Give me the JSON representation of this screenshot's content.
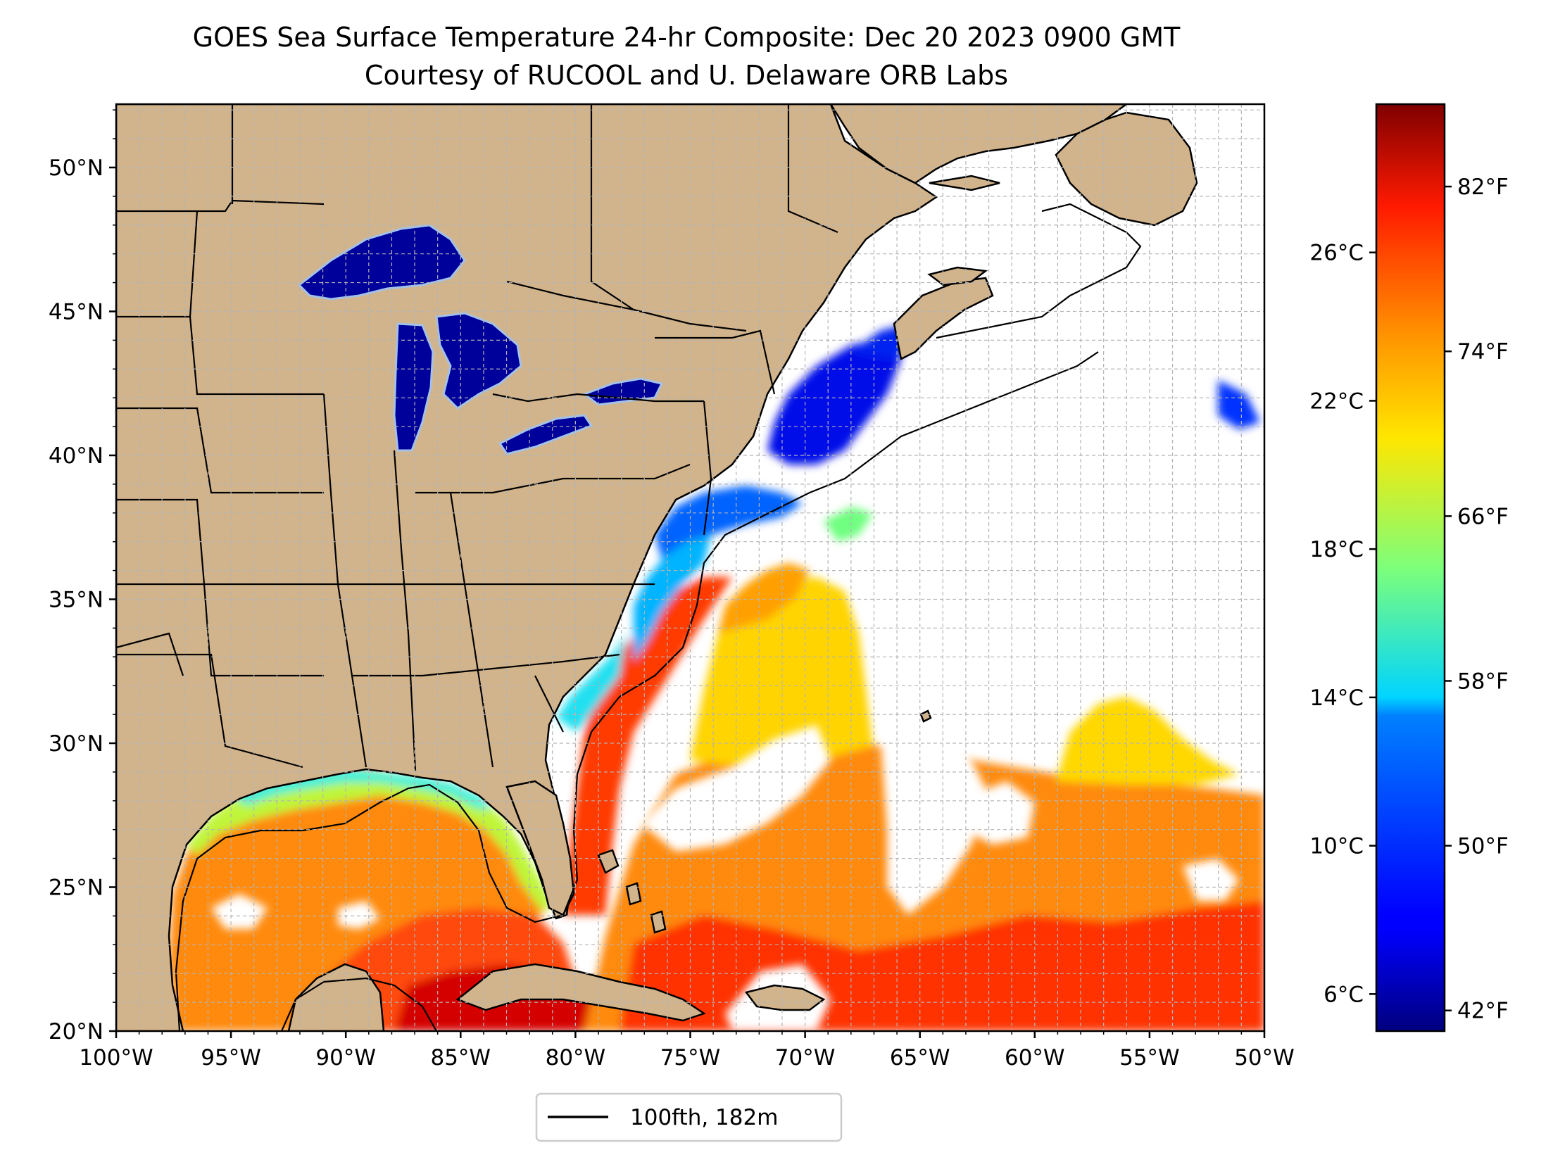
{
  "title": {
    "line1": "GOES Sea Surface Temperature 24-hr Composite: Dec 20 2023 0900 GMT",
    "line2": "Courtesy of RUCOOL and U. Delaware ORB Labs"
  },
  "map": {
    "lon_range": [
      -100,
      -50
    ],
    "lat_range": [
      20,
      52.2
    ],
    "lon_ticks": [
      {
        "value": -100,
        "label": "100°W"
      },
      {
        "value": -95,
        "label": "95°W"
      },
      {
        "value": -90,
        "label": "90°W"
      },
      {
        "value": -85,
        "label": "85°W"
      },
      {
        "value": -80,
        "label": "80°W"
      },
      {
        "value": -75,
        "label": "75°W"
      },
      {
        "value": -70,
        "label": "70°W"
      },
      {
        "value": -65,
        "label": "65°W"
      },
      {
        "value": -60,
        "label": "60°W"
      },
      {
        "value": -55,
        "label": "55°W"
      },
      {
        "value": -50,
        "label": "50°W"
      }
    ],
    "lat_ticks": [
      {
        "value": 20,
        "label": "20°N"
      },
      {
        "value": 25,
        "label": "25°N"
      },
      {
        "value": 30,
        "label": "30°N"
      },
      {
        "value": 35,
        "label": "35°N"
      },
      {
        "value": 40,
        "label": "40°N"
      },
      {
        "value": 45,
        "label": "45°N"
      },
      {
        "value": 50,
        "label": "50°N"
      }
    ],
    "grid": true,
    "colors": {
      "land": "#d2b48c",
      "ocean_no_data": "#ffffff",
      "lakes_outline": "#a4c2e8",
      "grid": "#b4b4b4"
    }
  },
  "colorbar": {
    "colormap": "jet",
    "range_c": [
      5,
      30
    ],
    "celsius_ticks": [
      {
        "value": 6,
        "label": "6°C"
      },
      {
        "value": 10,
        "label": "10°C"
      },
      {
        "value": 14,
        "label": "14°C"
      },
      {
        "value": 18,
        "label": "18°C"
      },
      {
        "value": 22,
        "label": "22°C"
      },
      {
        "value": 26,
        "label": "26°C"
      }
    ],
    "fahrenheit_ticks": [
      {
        "value": 42,
        "label": "42°F"
      },
      {
        "value": 50,
        "label": "50°F"
      },
      {
        "value": 58,
        "label": "58°F"
      },
      {
        "value": 66,
        "label": "66°F"
      },
      {
        "value": 74,
        "label": "74°F"
      },
      {
        "value": 82,
        "label": "82°F"
      }
    ]
  },
  "legend": {
    "label": "100fth, 182m",
    "line_color": "#000000"
  }
}
